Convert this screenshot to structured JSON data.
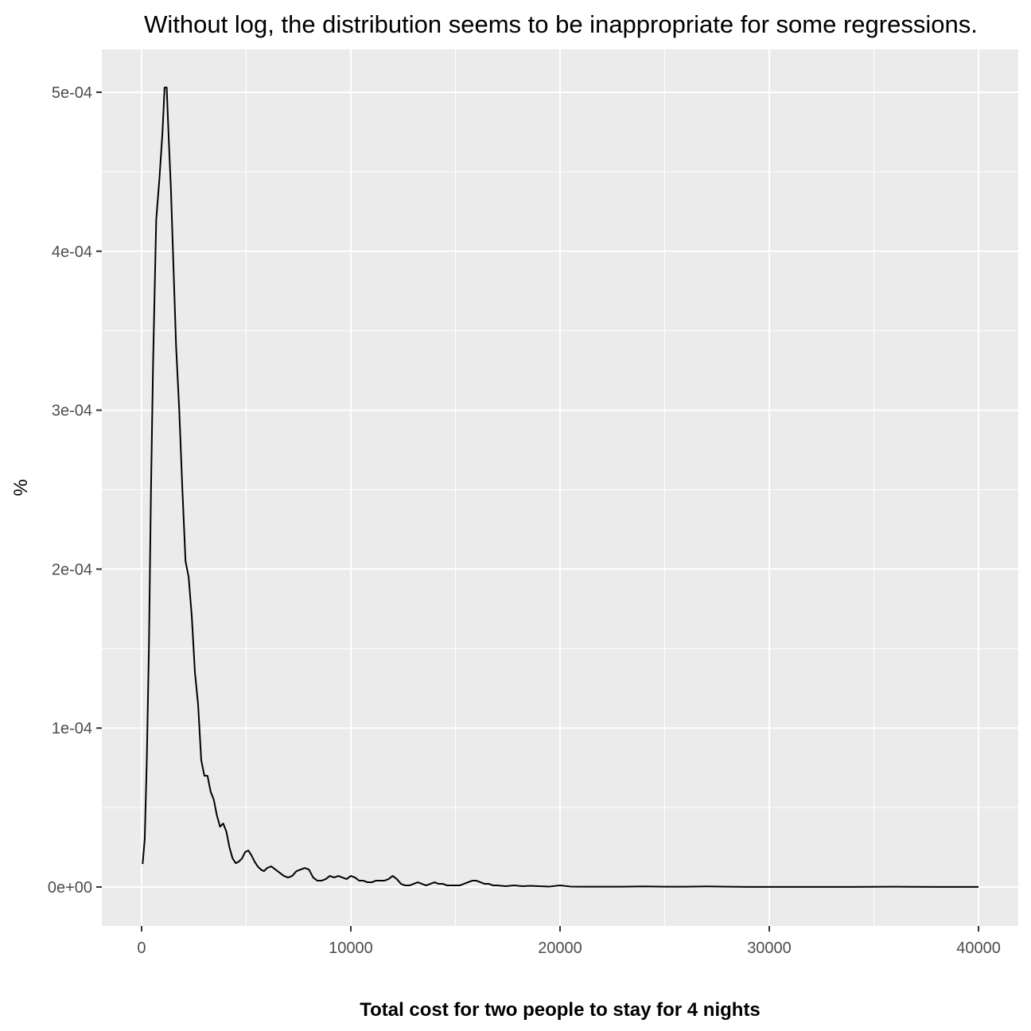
{
  "chart_data": {
    "type": "line",
    "title": "Without log, the distribution seems to be inappropriate for some regressions.",
    "xlabel": "Total cost for two people to stay for 4 nights",
    "ylabel": "%",
    "xlim": [
      -1900,
      41900
    ],
    "ylim": [
      -2.45e-05,
      0.000527
    ],
    "x_ticks": [
      0,
      10000,
      20000,
      30000,
      40000
    ],
    "x_tick_labels": [
      "0",
      "10000",
      "20000",
      "30000",
      "40000"
    ],
    "y_ticks": [
      0,
      0.0001,
      0.0002,
      0.0003,
      0.0004,
      0.0005
    ],
    "y_tick_labels": [
      "0e+00",
      "1e-04",
      "2e-04",
      "3e-04",
      "4e-04",
      "5e-04"
    ],
    "grid": true,
    "legend": "none",
    "colors": {
      "panel": "#ebebeb",
      "grid": "#ffffff",
      "line": "#000000"
    },
    "series": [
      {
        "x": [
          50,
          150,
          250,
          350,
          450,
          550,
          700,
          850,
          1000,
          1100,
          1200,
          1300,
          1400,
          1500,
          1650,
          1800,
          1950,
          2100,
          2250,
          2400,
          2550,
          2700,
          2850,
          3000,
          3150,
          3300,
          3450,
          3600,
          3750,
          3900,
          4050,
          4200,
          4350,
          4500,
          4650,
          4800,
          4950,
          5100,
          5250,
          5400,
          5550,
          5700,
          5850,
          6000,
          6200,
          6400,
          6600,
          6800,
          7000,
          7200,
          7400,
          7600,
          7800,
          8000,
          8200,
          8400,
          8600,
          8800,
          9000,
          9200,
          9400,
          9600,
          9800,
          10000,
          10200,
          10400,
          10600,
          10800,
          11000,
          11200,
          11400,
          11600,
          11800,
          12000,
          12200,
          12400,
          12600,
          12800,
          13000,
          13200,
          13400,
          13600,
          13800,
          14000,
          14200,
          14400,
          14600,
          14800,
          15000,
          15200,
          15400,
          15600,
          15800,
          16000,
          16200,
          16400,
          16600,
          16800,
          17000,
          17400,
          17800,
          18200,
          18600,
          19000,
          19500,
          20000,
          20500,
          21000,
          22000,
          23000,
          24000,
          25000,
          26000,
          27000,
          28000,
          29000,
          30000,
          32000,
          34000,
          36000,
          38000,
          40000
        ],
        "y": [
          1.45e-05,
          3e-05,
          8e-05,
          0.00015,
          0.00025,
          0.00033,
          0.00042,
          0.000445,
          0.000475,
          0.000503,
          0.000503,
          0.00047,
          0.00044,
          0.0004,
          0.00034,
          0.0003,
          0.00025,
          0.000205,
          0.000195,
          0.00017,
          0.000135,
          0.000115,
          8e-05,
          7e-05,
          7e-05,
          6e-05,
          5.5e-05,
          4.5e-05,
          3.8e-05,
          4e-05,
          3.5e-05,
          2.5e-05,
          1.8e-05,
          1.5e-05,
          1.6e-05,
          1.8e-05,
          2.2e-05,
          2.3e-05,
          2e-05,
          1.6e-05,
          1.3e-05,
          1.1e-05,
          1e-05,
          1.2e-05,
          1.3e-05,
          1.1e-05,
          9e-06,
          7e-06,
          6e-06,
          7e-06,
          1e-05,
          1.1e-05,
          1.2e-05,
          1.1e-05,
          6e-06,
          4e-06,
          4e-06,
          5e-06,
          7e-06,
          6e-06,
          7e-06,
          6e-06,
          5e-06,
          7e-06,
          6e-06,
          4e-06,
          4e-06,
          3e-06,
          3e-06,
          4e-06,
          4e-06,
          4e-06,
          5e-06,
          7e-06,
          5e-06,
          2e-06,
          1e-06,
          1e-06,
          2e-06,
          3e-06,
          2e-06,
          1e-06,
          2e-06,
          3e-06,
          2e-06,
          2e-06,
          1e-06,
          1e-06,
          1e-06,
          1e-06,
          2e-06,
          3e-06,
          4e-06,
          4e-06,
          3e-06,
          2e-06,
          2e-06,
          1e-06,
          1e-06,
          5e-07,
          1e-06,
          5e-07,
          8e-07,
          5e-07,
          3e-07,
          1e-06,
          3e-07,
          2e-07,
          2e-07,
          2e-07,
          4e-07,
          2e-07,
          2e-07,
          4e-07,
          2e-07,
          1e-07,
          1e-07,
          1e-07,
          1e-07,
          2e-07,
          1e-07,
          1e-07
        ]
      }
    ]
  }
}
